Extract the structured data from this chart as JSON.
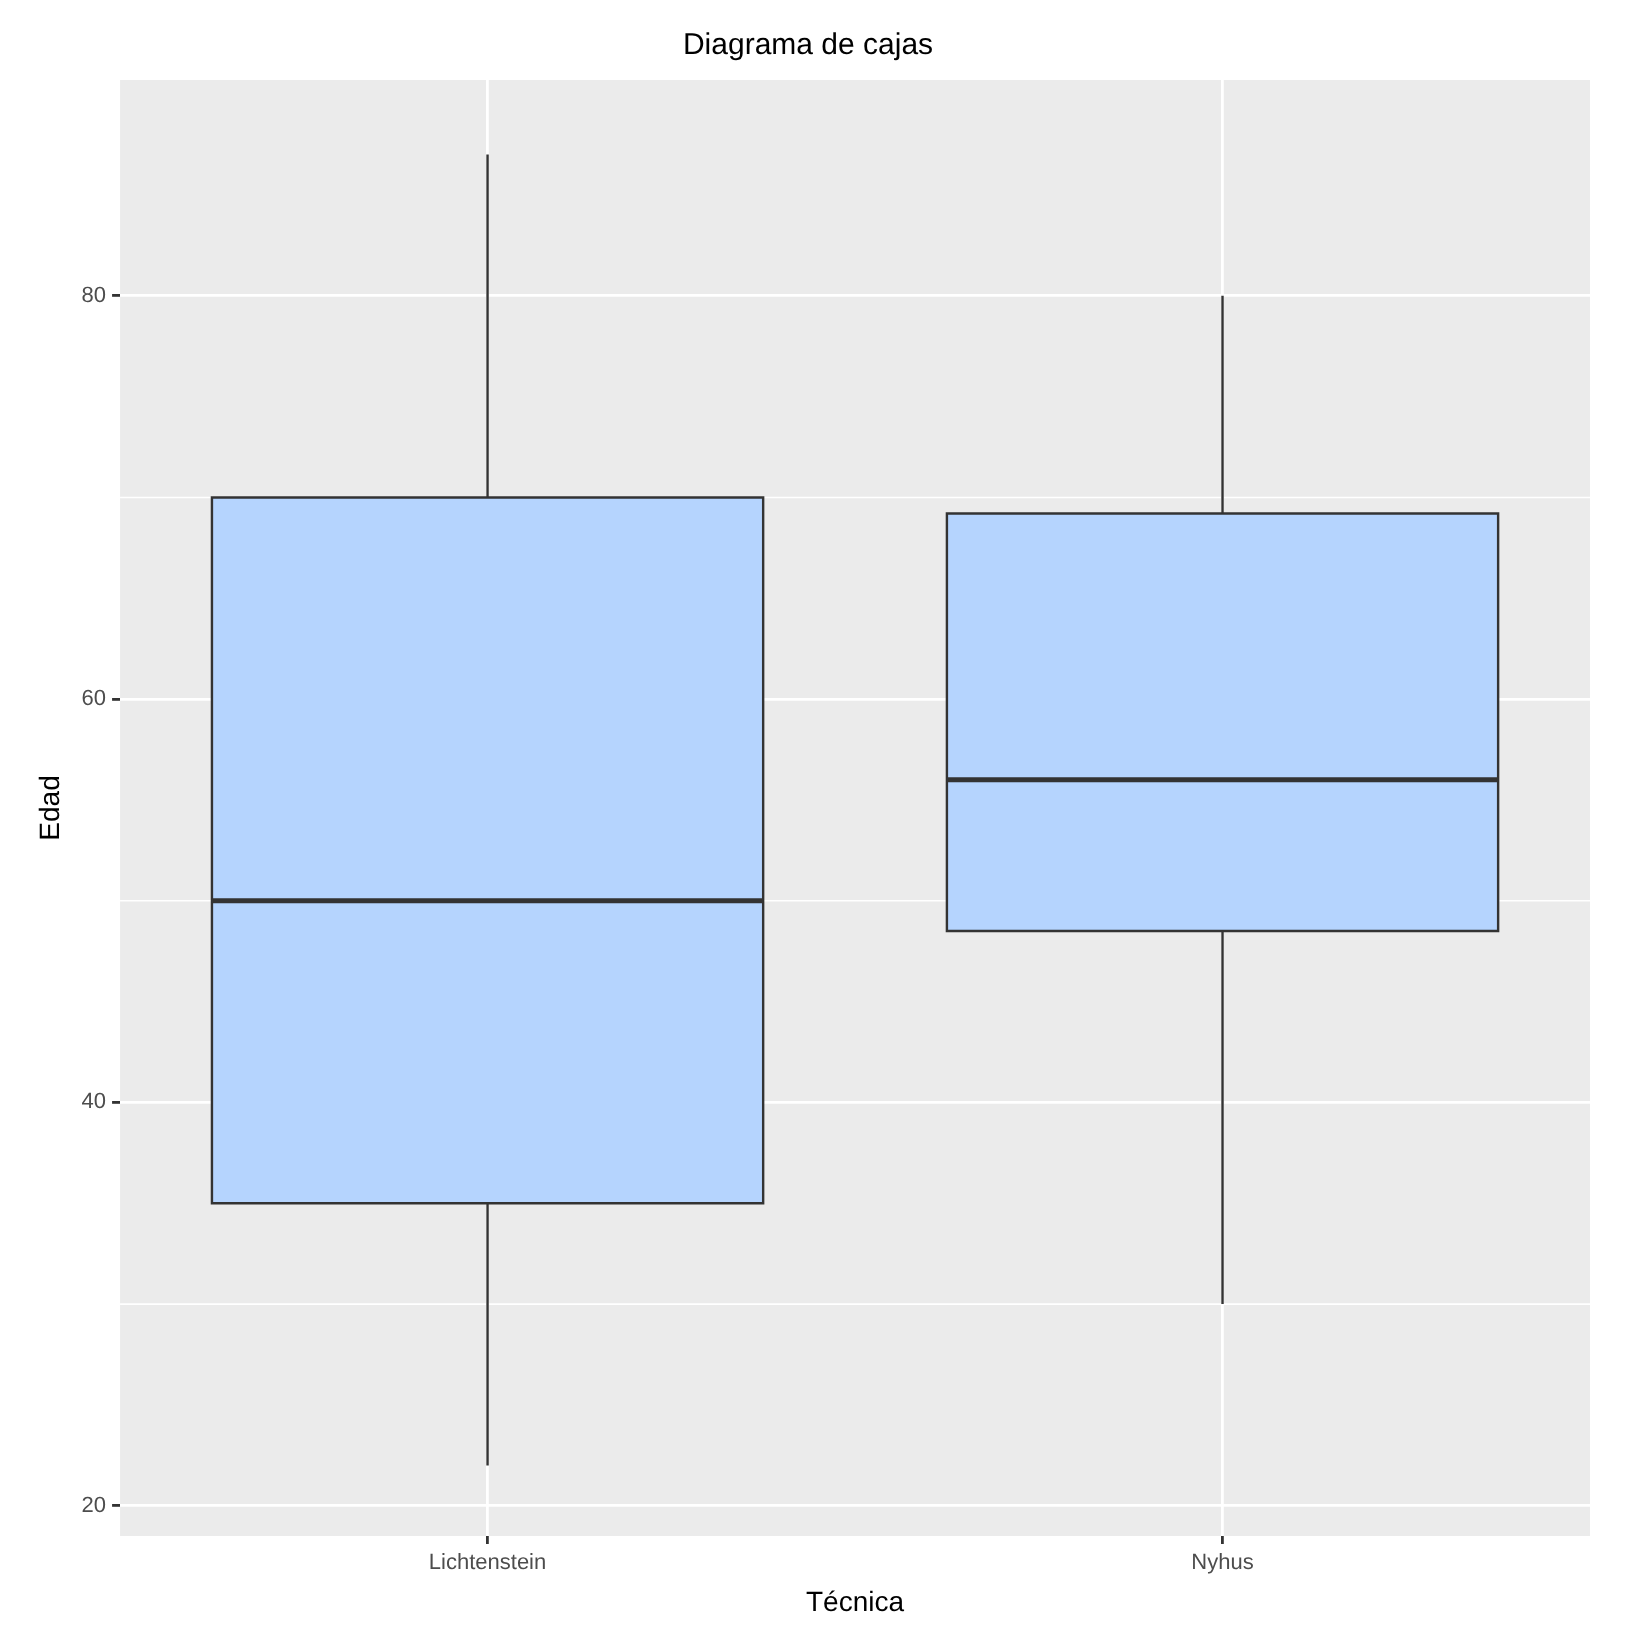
{
  "chart_data": {
    "type": "box",
    "title": "Diagrama de cajas",
    "xlabel": "Técnica",
    "ylabel": "Edad",
    "categories": [
      "Lichtenstein",
      "Nyhus"
    ],
    "boxes": [
      {
        "low": 22,
        "q1": 35,
        "median": 50,
        "q3": 70,
        "high": 87
      },
      {
        "low": 30,
        "q1": 48.5,
        "median": 56,
        "q3": 69.2,
        "high": 80
      }
    ],
    "color": "#b5d4fe",
    "ylim": [
      18.5,
      90.7
    ],
    "yticks": [
      20,
      40,
      60,
      80
    ],
    "grid": true,
    "legend": false
  }
}
